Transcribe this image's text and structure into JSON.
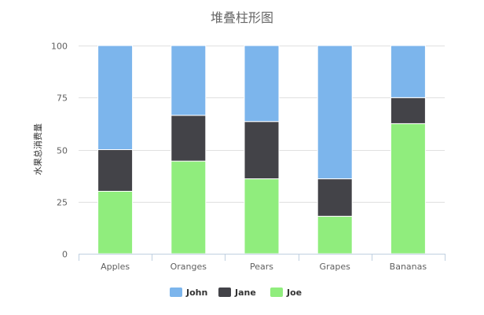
{
  "chart_data": {
    "type": "bar",
    "stacked": true,
    "title": "堆叠柱形图",
    "ylabel": "水果总消费量",
    "categories": [
      "Apples",
      "Oranges",
      "Pears",
      "Grapes",
      "Bananas"
    ],
    "series": [
      {
        "name": "John",
        "color": "#7cb5ec",
        "values": [
          50,
          33.5,
          36.5,
          64,
          25
        ]
      },
      {
        "name": "Jane",
        "color": "#434348",
        "values": [
          20,
          22,
          27.5,
          18,
          12.5
        ]
      },
      {
        "name": "Joe",
        "color": "#90ed7d",
        "values": [
          30,
          44.5,
          36,
          18,
          62.5
        ]
      }
    ],
    "ylim": [
      0,
      100
    ],
    "yticks": [
      0,
      25,
      50,
      75,
      100
    ],
    "grid": true,
    "legend_position": "bottom-center"
  }
}
